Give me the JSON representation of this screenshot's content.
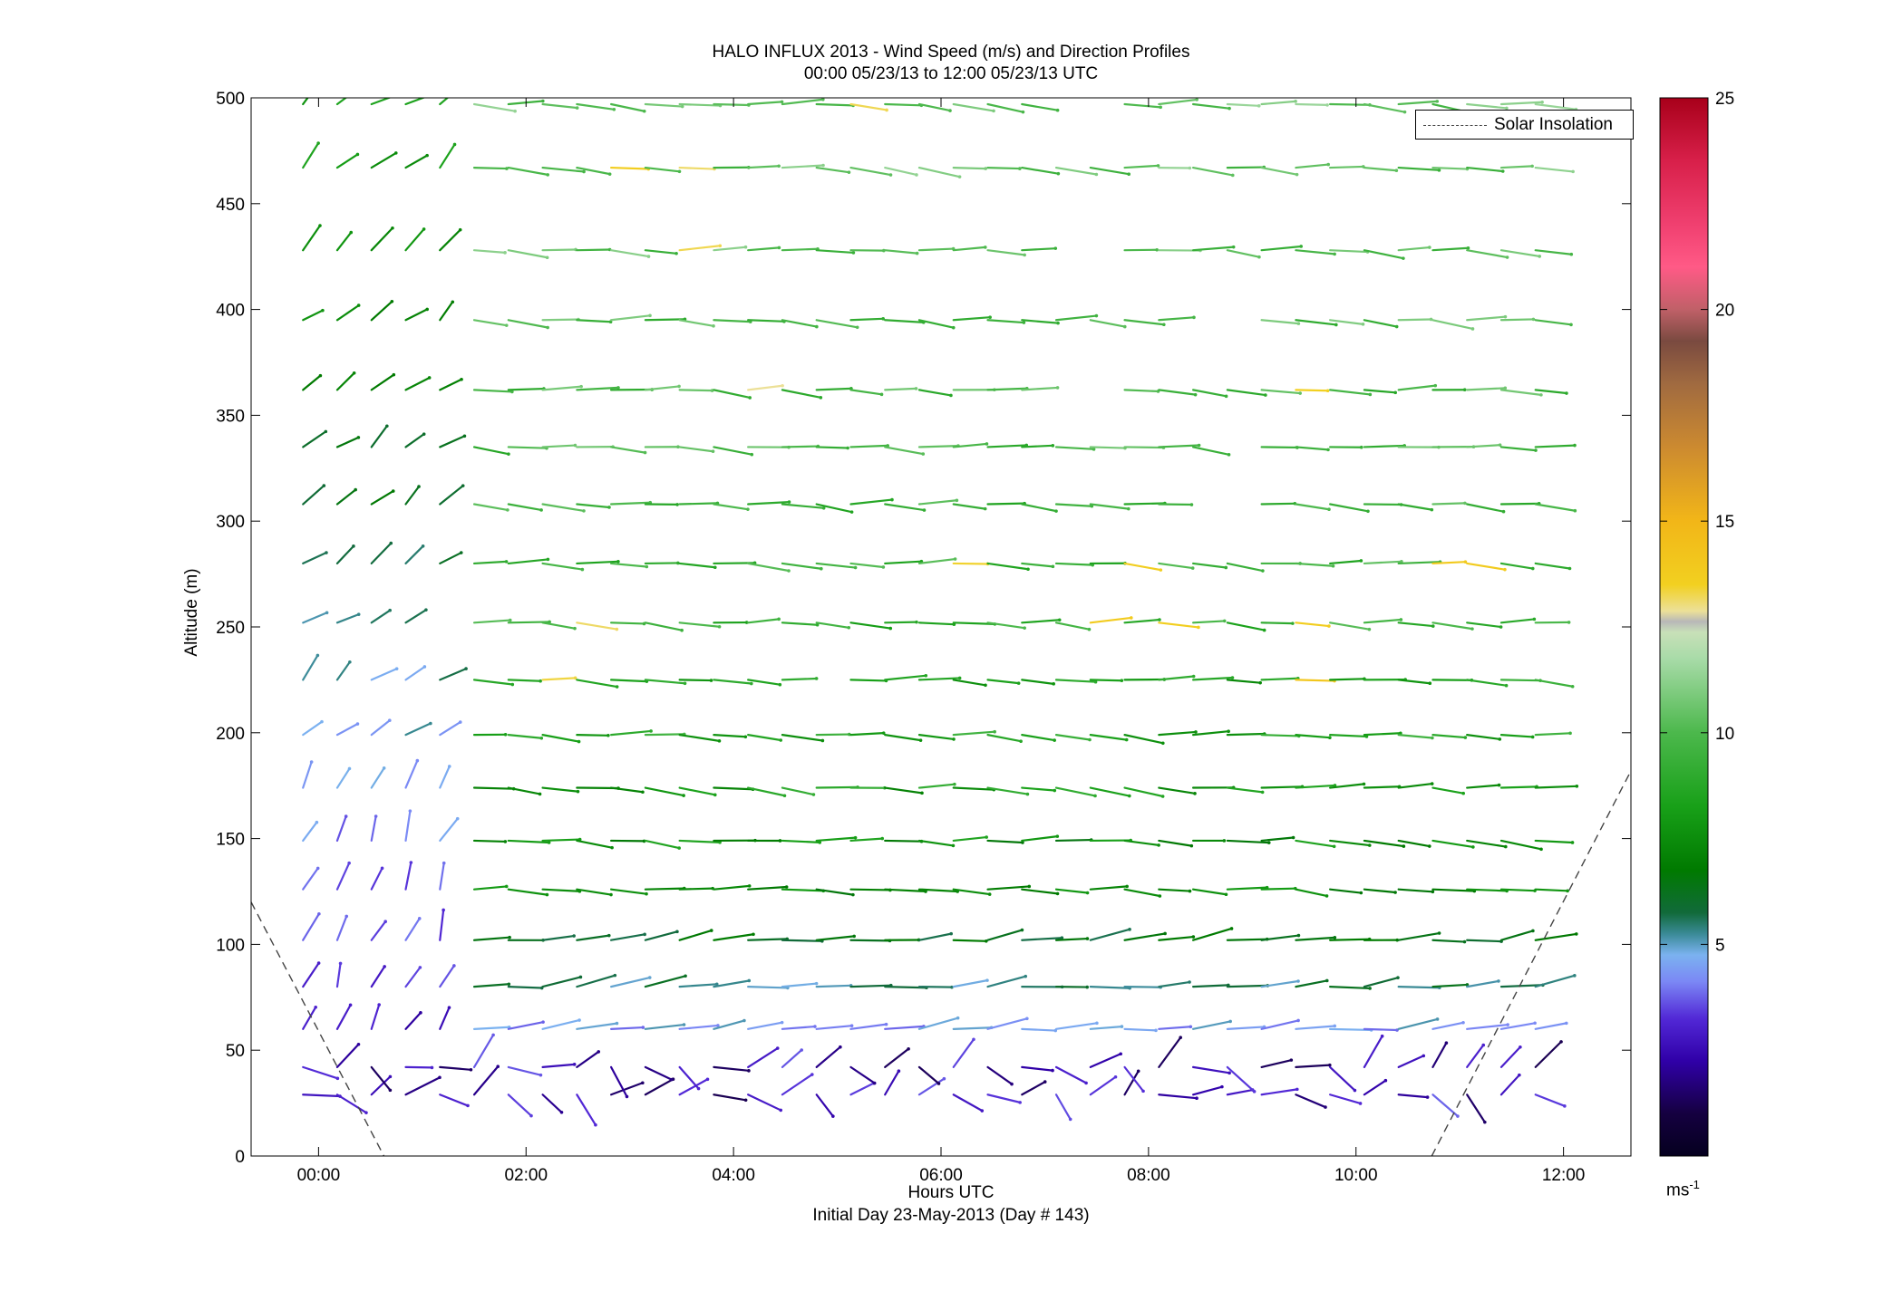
{
  "title_line1": "HALO INFLUX 2013 - Wind Speed (m/s) and Direction Profiles",
  "title_line2": "00:00 05/23/13 to 12:00 05/23/13  UTC",
  "legend_label": "Solar Insolation",
  "colorbar_unit": "ms",
  "colorbar_unit_exp": "-1",
  "chart_data": {
    "type": "scatter",
    "title": "HALO INFLUX 2013 - Wind Speed (m/s) and Direction Profiles",
    "subtitle": "00:00 05/23/13 to 12:00 05/23/13  UTC",
    "xlabel": "Hours UTC",
    "xlabel_sub": "Initial Day 23-May-2013 (Day # 143)",
    "ylabel": "Altitude (m)",
    "xlim": [
      -0.65,
      12.65
    ],
    "ylim": [
      0,
      500
    ],
    "x_ticks": [
      0,
      2,
      4,
      6,
      8,
      10,
      12
    ],
    "x_tick_labels": [
      "00:00",
      "02:00",
      "04:00",
      "06:00",
      "08:00",
      "10:00",
      "12:00"
    ],
    "y_ticks": [
      0,
      50,
      100,
      150,
      200,
      250,
      300,
      350,
      400,
      450,
      500
    ],
    "y_tick_labels": [
      "0",
      "50",
      "100",
      "150",
      "200",
      "250",
      "300",
      "350",
      "400",
      "450",
      "500"
    ],
    "colorbar": {
      "range": [
        0,
        25
      ],
      "ticks": [
        5,
        10,
        15,
        20,
        25
      ],
      "tick_labels": [
        "5",
        "10",
        "15",
        "20",
        "25"
      ]
    },
    "legend": {
      "position": "top-right",
      "entries": [
        "Solar Insolation"
      ]
    },
    "grid": false,
    "series": [
      {
        "name": "Solar Insolation",
        "style": "dashed",
        "x": [
          -0.65,
          0.63,
          10.73,
          12.65
        ],
        "y": [
          120,
          0,
          0,
          182
        ]
      }
    ],
    "wind_barbs": {
      "description": "Wind vectors at each altitude level over time; colour indicates wind speed (ms-1)",
      "levels": [
        {
          "altitude": 29,
          "speed": 2.0
        },
        {
          "altitude": 42,
          "speed": 3.2
        },
        {
          "altitude": 60,
          "speed": 4.4
        },
        {
          "altitude": 80,
          "speed": 5.6
        },
        {
          "altitude": 102,
          "speed": 6.2
        },
        {
          "altitude": 126,
          "speed": 7.4
        },
        {
          "altitude": 149,
          "speed": 7.6
        },
        {
          "altitude": 174,
          "speed": 8.2
        },
        {
          "altitude": 199,
          "speed": 8.6
        },
        {
          "altitude": 225,
          "speed": 8.4
        },
        {
          "altitude": 252,
          "speed": 9.2
        },
        {
          "altitude": 280,
          "speed": 9.4
        },
        {
          "altitude": 308,
          "speed": 9.6
        },
        {
          "altitude": 335,
          "speed": 9.8
        },
        {
          "altitude": 362,
          "speed": 9.8
        },
        {
          "altitude": 395,
          "speed": 10.0
        },
        {
          "altitude": 428,
          "speed": 10.2
        },
        {
          "altitude": 467,
          "speed": 10.4
        },
        {
          "altitude": 497,
          "speed": 10.6
        }
      ]
    }
  }
}
